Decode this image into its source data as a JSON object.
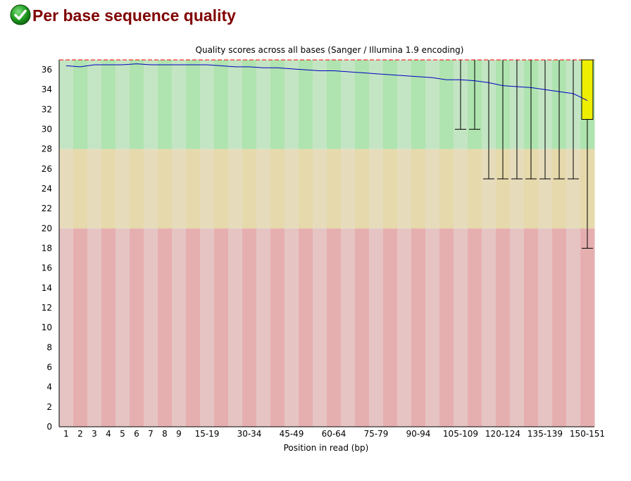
{
  "header": {
    "title": "Per base sequence quality",
    "status_icon": "check-circle-icon"
  },
  "chart_data": {
    "type": "box",
    "title": "Quality scores across all bases (Sanger / Illumina 1.9 encoding)",
    "xlabel": "Position in read (bp)",
    "ylabel": "",
    "ylim": [
      0,
      37
    ],
    "yticks": [
      0,
      2,
      4,
      6,
      8,
      10,
      12,
      14,
      16,
      18,
      20,
      22,
      24,
      26,
      28,
      30,
      32,
      34,
      36
    ],
    "categories": [
      "1",
      "2",
      "3",
      "4",
      "5",
      "6",
      "7",
      "8",
      "9",
      "10-14",
      "15-19",
      "20-24",
      "25-29",
      "30-34",
      "35-39",
      "40-44",
      "45-49",
      "50-54",
      "55-59",
      "60-64",
      "65-69",
      "70-74",
      "75-79",
      "80-84",
      "85-89",
      "90-94",
      "95-99",
      "100-104",
      "105-109",
      "110-114",
      "115-119",
      "120-124",
      "125-129",
      "130-134",
      "135-139",
      "140-144",
      "145-149",
      "150-151"
    ],
    "xtick_labels": [
      "1",
      "2",
      "3",
      "4",
      "5",
      "6",
      "7",
      "8",
      "9",
      "15-19",
      "30-34",
      "45-49",
      "60-64",
      "75-79",
      "90-94",
      "105-109",
      "120-124",
      "135-139",
      "150-151"
    ],
    "bands": [
      {
        "name": "good",
        "from": 28,
        "to": 37,
        "colors": [
          "#c4e5c4",
          "#afe3af"
        ]
      },
      {
        "name": "reasonable",
        "from": 20,
        "to": 28,
        "colors": [
          "#e6dcbc",
          "#e6d9ac"
        ]
      },
      {
        "name": "poor",
        "from": 0,
        "to": 20,
        "colors": [
          "#e6c4c4",
          "#e6afaf"
        ]
      }
    ],
    "colors": {
      "mean_line": "#0000c0",
      "box_fill": "#eeee00",
      "box_stroke": "#000000",
      "whisker": "#000000",
      "median": "#ff0000"
    },
    "mean": [
      36.4,
      36.3,
      36.5,
      36.5,
      36.5,
      36.6,
      36.5,
      36.5,
      36.5,
      36.5,
      36.5,
      36.4,
      36.3,
      36.3,
      36.2,
      36.2,
      36.1,
      36.0,
      35.9,
      35.9,
      35.8,
      35.7,
      35.6,
      35.5,
      35.4,
      35.3,
      35.2,
      35.0,
      35.0,
      34.9,
      34.7,
      34.4,
      34.3,
      34.2,
      34.0,
      33.8,
      33.6,
      32.9
    ],
    "q1": [
      37,
      37,
      37,
      37,
      37,
      37,
      37,
      37,
      37,
      37,
      37,
      37,
      37,
      37,
      37,
      37,
      37,
      37,
      37,
      37,
      37,
      37,
      37,
      37,
      37,
      37,
      37,
      37,
      37,
      37,
      37,
      37,
      37,
      37,
      37,
      37,
      37,
      31
    ],
    "median": [
      37,
      37,
      37,
      37,
      37,
      37,
      37,
      37,
      37,
      37,
      37,
      37,
      37,
      37,
      37,
      37,
      37,
      37,
      37,
      37,
      37,
      37,
      37,
      37,
      37,
      37,
      37,
      37,
      37,
      37,
      37,
      37,
      37,
      37,
      37,
      37,
      37,
      37
    ],
    "q3": [
      37,
      37,
      37,
      37,
      37,
      37,
      37,
      37,
      37,
      37,
      37,
      37,
      37,
      37,
      37,
      37,
      37,
      37,
      37,
      37,
      37,
      37,
      37,
      37,
      37,
      37,
      37,
      37,
      37,
      37,
      37,
      37,
      37,
      37,
      37,
      37,
      37,
      37
    ],
    "p10": [
      37,
      37,
      37,
      37,
      37,
      37,
      37,
      37,
      37,
      37,
      37,
      37,
      37,
      37,
      37,
      37,
      37,
      37,
      37,
      37,
      37,
      37,
      37,
      37,
      37,
      37,
      37,
      37,
      30,
      30,
      25,
      25,
      25,
      25,
      25,
      25,
      25,
      18
    ],
    "p90": [
      37,
      37,
      37,
      37,
      37,
      37,
      37,
      37,
      37,
      37,
      37,
      37,
      37,
      37,
      37,
      37,
      37,
      37,
      37,
      37,
      37,
      37,
      37,
      37,
      37,
      37,
      37,
      37,
      37,
      37,
      37,
      37,
      37,
      37,
      37,
      37,
      37,
      37
    ]
  }
}
